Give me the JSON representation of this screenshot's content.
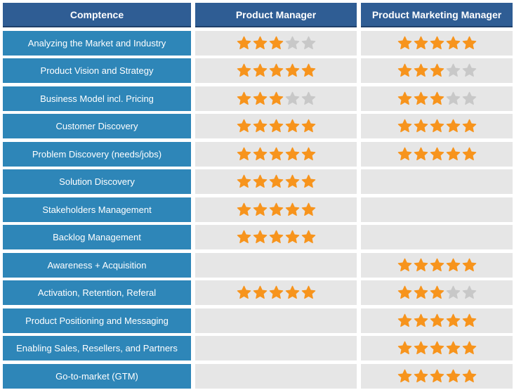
{
  "headers": {
    "competence": "Comptence",
    "product_manager": "Product Manager",
    "product_marketing_manager": "Product Marketing Manager"
  },
  "colors": {
    "header_bg": "#2f5d94",
    "competence_bg": "#2e86b8",
    "cell_bg": "#e6e6e6",
    "star_filled": "#f7941d",
    "star_empty": "#c8c8c8"
  },
  "max_stars": 5,
  "rows": [
    {
      "competence": "Analyzing the Market and Industry",
      "pm": 3,
      "pmm": 5
    },
    {
      "competence": "Product Vision and Strategy",
      "pm": 5,
      "pmm": 3
    },
    {
      "competence": "Business Model incl. Pricing",
      "pm": 3,
      "pmm": 3
    },
    {
      "competence": "Customer Discovery",
      "pm": 5,
      "pmm": 5
    },
    {
      "competence": "Problem Discovery (needs/jobs)",
      "pm": 5,
      "pmm": 5
    },
    {
      "competence": "Solution Discovery",
      "pm": 5,
      "pmm": 0
    },
    {
      "competence": "Stakeholders Management",
      "pm": 5,
      "pmm": 0
    },
    {
      "competence": "Backlog Management",
      "pm": 5,
      "pmm": 0
    },
    {
      "competence": "Awareness + Acquisition",
      "pm": 0,
      "pmm": 5
    },
    {
      "competence": "Activation, Retention, Referal",
      "pm": 5,
      "pmm": 3
    },
    {
      "competence": "Product Positioning and Messaging",
      "pm": 0,
      "pmm": 5
    },
    {
      "competence": "Enabling Sales, Resellers, and Partners",
      "pm": 0,
      "pmm": 5
    },
    {
      "competence": "Go-to-market (GTM)",
      "pm": 0,
      "pmm": 5
    }
  ]
}
